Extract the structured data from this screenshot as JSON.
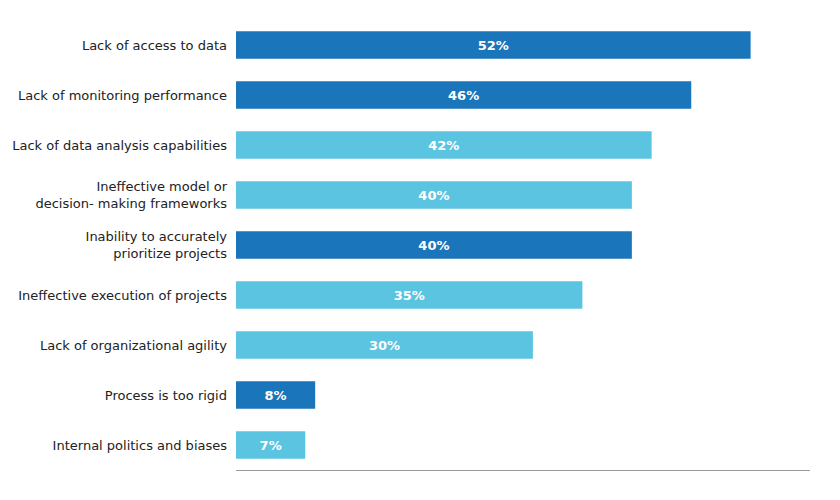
{
  "chart_data": {
    "type": "bar",
    "orientation": "horizontal",
    "categories": [
      "Lack of access to data",
      "Lack of monitoring performance",
      "Lack of data analysis capabilities",
      "Ineffective model or\ndecision- making frameworks",
      "Inability to accurately\nprioritize projects",
      "Ineffective execution of projects",
      "Lack of organizational agility",
      "Process is too rigid",
      "Internal politics and biases"
    ],
    "values": [
      52,
      46,
      42,
      40,
      40,
      35,
      30,
      8,
      7
    ],
    "value_labels": [
      "52%",
      "46%",
      "42%",
      "40%",
      "40%",
      "35%",
      "30%",
      "8%",
      "7%"
    ],
    "colors": [
      "#1b75bb",
      "#1b75bb",
      "#5bc4e0",
      "#5bc4e0",
      "#1b75bb",
      "#5bc4e0",
      "#5bc4e0",
      "#1b75bb",
      "#5bc4e0"
    ],
    "xlim": [
      0,
      58
    ],
    "grid": false,
    "data_labels": true,
    "tick_labels": "y"
  }
}
